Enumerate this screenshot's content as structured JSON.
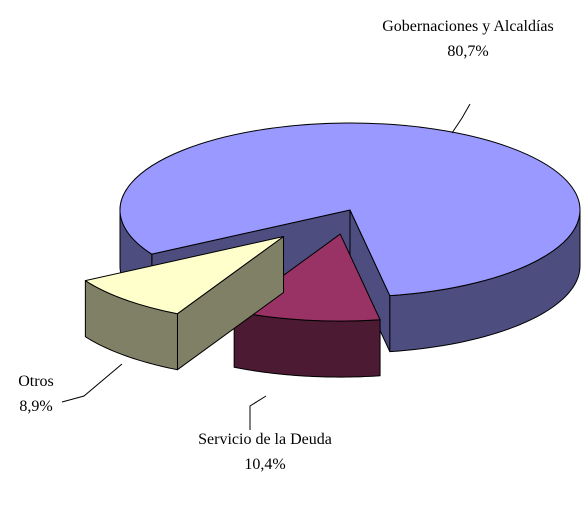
{
  "chart_data": {
    "type": "pie3d",
    "categories": [
      "Gobernaciones y Alcaldías",
      "Servicio de la Deuda",
      "Otros"
    ],
    "values": [
      80.7,
      10.4,
      8.9
    ],
    "value_labels": [
      "80,7%",
      "10,4%",
      "8,9%"
    ],
    "colors": [
      "#9999ff",
      "#993366",
      "#ffffcc"
    ]
  }
}
